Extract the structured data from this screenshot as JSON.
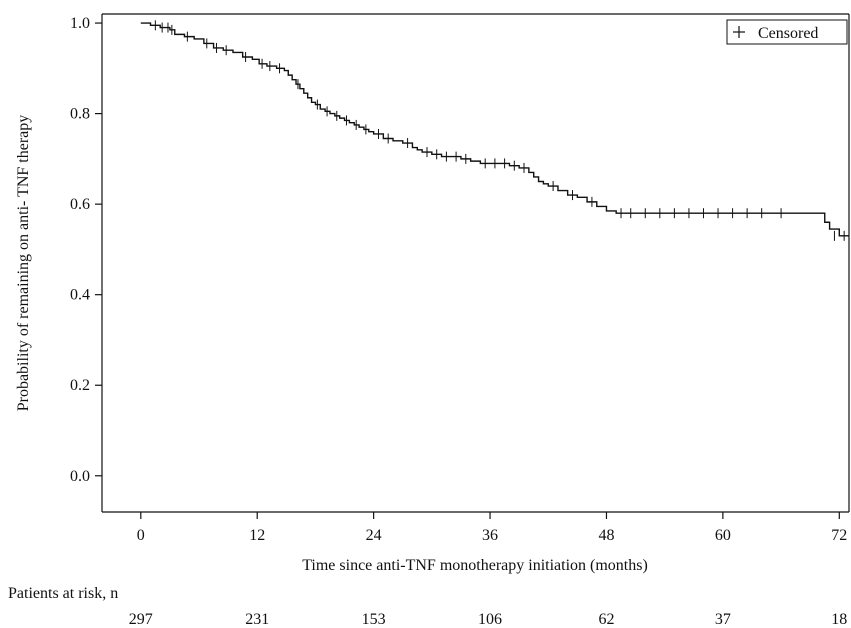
{
  "chart_data": {
    "type": "line",
    "title": "",
    "xlabel": "Time since anti-TNF monotherapy initiation (months)",
    "ylabel": "Probability of remaining on anti- TNF therapy",
    "xlim": [
      -4,
      73
    ],
    "ylim": [
      -0.08,
      1.02
    ],
    "xticks": [
      0,
      12,
      24,
      36,
      48,
      60,
      72
    ],
    "yticks": [
      "0.0",
      "0.2",
      "0.4",
      "0.6",
      "0.8",
      "1.0"
    ],
    "grid": false,
    "legend": {
      "position": "top-right",
      "label": "Censored",
      "symbol": "+"
    },
    "series": [
      {
        "x": [
          0,
          1,
          2,
          3,
          3.5,
          4.5,
          5.5,
          6.5,
          7.5,
          8.5,
          9.5,
          10.5,
          11.5,
          12.2,
          13,
          14,
          14.8,
          15.2,
          15.6,
          16,
          16.4,
          16.8,
          17.2,
          17.6,
          18,
          18.5,
          19,
          19.5,
          20,
          20.5,
          21,
          21.5,
          22,
          22.5,
          23,
          23.5,
          24,
          25,
          26,
          27,
          28,
          28.5,
          29,
          30,
          31,
          32,
          33,
          34,
          35,
          36,
          37,
          38,
          39,
          40,
          40.5,
          41,
          41.5,
          42,
          43,
          44,
          45,
          46,
          47,
          48,
          49,
          70,
          70.5,
          71,
          72,
          73
        ],
        "y": [
          1.0,
          0.995,
          0.99,
          0.985,
          0.975,
          0.97,
          0.965,
          0.955,
          0.945,
          0.94,
          0.935,
          0.925,
          0.92,
          0.91,
          0.905,
          0.9,
          0.895,
          0.885,
          0.875,
          0.865,
          0.855,
          0.845,
          0.835,
          0.825,
          0.82,
          0.81,
          0.805,
          0.8,
          0.795,
          0.79,
          0.785,
          0.78,
          0.775,
          0.77,
          0.765,
          0.76,
          0.755,
          0.745,
          0.74,
          0.735,
          0.725,
          0.72,
          0.715,
          0.71,
          0.705,
          0.705,
          0.7,
          0.695,
          0.69,
          0.69,
          0.69,
          0.685,
          0.68,
          0.67,
          0.66,
          0.65,
          0.645,
          0.64,
          0.63,
          0.62,
          0.615,
          0.605,
          0.595,
          0.585,
          0.58,
          0.58,
          0.56,
          0.545,
          0.53,
          0.53
        ]
      }
    ],
    "censored": [
      {
        "x": 1.5,
        "y": 0.995
      },
      {
        "x": 2.2,
        "y": 0.99
      },
      {
        "x": 2.8,
        "y": 0.99
      },
      {
        "x": 3.2,
        "y": 0.985
      },
      {
        "x": 4.8,
        "y": 0.97
      },
      {
        "x": 6.8,
        "y": 0.955
      },
      {
        "x": 7.8,
        "y": 0.945
      },
      {
        "x": 8.8,
        "y": 0.94
      },
      {
        "x": 10.8,
        "y": 0.925
      },
      {
        "x": 12.5,
        "y": 0.91
      },
      {
        "x": 13.3,
        "y": 0.905
      },
      {
        "x": 14.3,
        "y": 0.9
      },
      {
        "x": 16.2,
        "y": 0.865
      },
      {
        "x": 18.2,
        "y": 0.82
      },
      {
        "x": 19.2,
        "y": 0.805
      },
      {
        "x": 20.2,
        "y": 0.795
      },
      {
        "x": 21.2,
        "y": 0.785
      },
      {
        "x": 22.2,
        "y": 0.775
      },
      {
        "x": 23.2,
        "y": 0.765
      },
      {
        "x": 24.5,
        "y": 0.755
      },
      {
        "x": 25.5,
        "y": 0.745
      },
      {
        "x": 27.5,
        "y": 0.735
      },
      {
        "x": 29.5,
        "y": 0.715
      },
      {
        "x": 30.5,
        "y": 0.71
      },
      {
        "x": 31.5,
        "y": 0.705
      },
      {
        "x": 32.5,
        "y": 0.705
      },
      {
        "x": 33.5,
        "y": 0.7
      },
      {
        "x": 35.5,
        "y": 0.69
      },
      {
        "x": 36.5,
        "y": 0.69
      },
      {
        "x": 37.5,
        "y": 0.69
      },
      {
        "x": 38.5,
        "y": 0.685
      },
      {
        "x": 39.5,
        "y": 0.68
      },
      {
        "x": 42.5,
        "y": 0.64
      },
      {
        "x": 44.5,
        "y": 0.62
      },
      {
        "x": 46.5,
        "y": 0.605
      },
      {
        "x": 49.5,
        "y": 0.58
      },
      {
        "x": 50.5,
        "y": 0.58
      },
      {
        "x": 52,
        "y": 0.58
      },
      {
        "x": 53.5,
        "y": 0.58
      },
      {
        "x": 55,
        "y": 0.58
      },
      {
        "x": 56.5,
        "y": 0.58
      },
      {
        "x": 58,
        "y": 0.58
      },
      {
        "x": 59.5,
        "y": 0.58
      },
      {
        "x": 61,
        "y": 0.58
      },
      {
        "x": 62.5,
        "y": 0.58
      },
      {
        "x": 64,
        "y": 0.58
      },
      {
        "x": 66,
        "y": 0.58
      },
      {
        "x": 71.5,
        "y": 0.53
      },
      {
        "x": 72.5,
        "y": 0.53
      }
    ],
    "risk_table": {
      "label": "Patients at risk, n",
      "times": [
        0,
        12,
        24,
        36,
        48,
        60,
        72
      ],
      "counts": [
        "297",
        "231",
        "153",
        "106",
        "62",
        "37",
        "18"
      ]
    }
  }
}
